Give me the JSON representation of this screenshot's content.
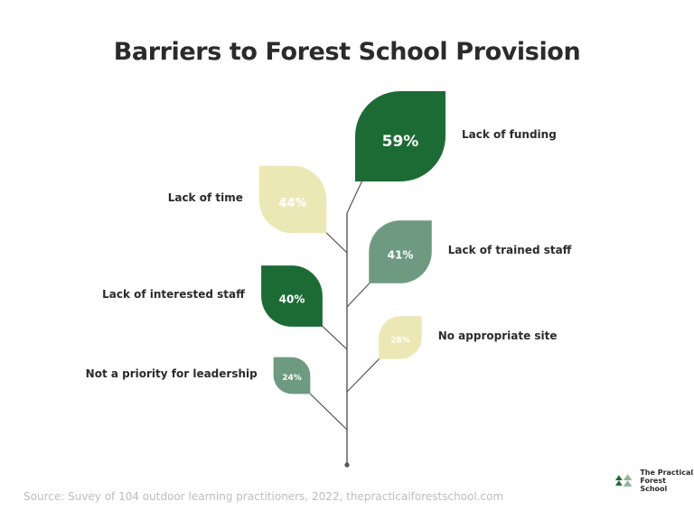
{
  "chart_data": {
    "type": "bar",
    "title": "Barriers to Forest School Provision",
    "categories": [
      "Lack of funding",
      "Lack of time",
      "Lack of trained staff",
      "Lack of interested staff",
      "No appropriate site",
      "Not a priority for leadership"
    ],
    "values": [
      59,
      44,
      41,
      40,
      28,
      24
    ],
    "value_labels": [
      "59%",
      "44%",
      "41%",
      "40%",
      "28%",
      "24%"
    ],
    "colors": [
      "#1d6b34",
      "#ece8b6",
      "#6d9a80",
      "#1d6b34",
      "#ece8b6",
      "#6d9a80"
    ],
    "value_label_colors": [
      "#ffffff",
      "#ffffff",
      "#ffffff",
      "#ffffff",
      "#ffffff",
      "#ffffff"
    ],
    "grid": false,
    "legend": "none"
  },
  "source": "Source: Suvey of 104 outdoor learning practitioners, 2022, thepracticalforestschool.com",
  "logo": {
    "line1": "The Practical",
    "line2": "Forest School",
    "icon": "tree-icon"
  },
  "stem_color": "#555555"
}
